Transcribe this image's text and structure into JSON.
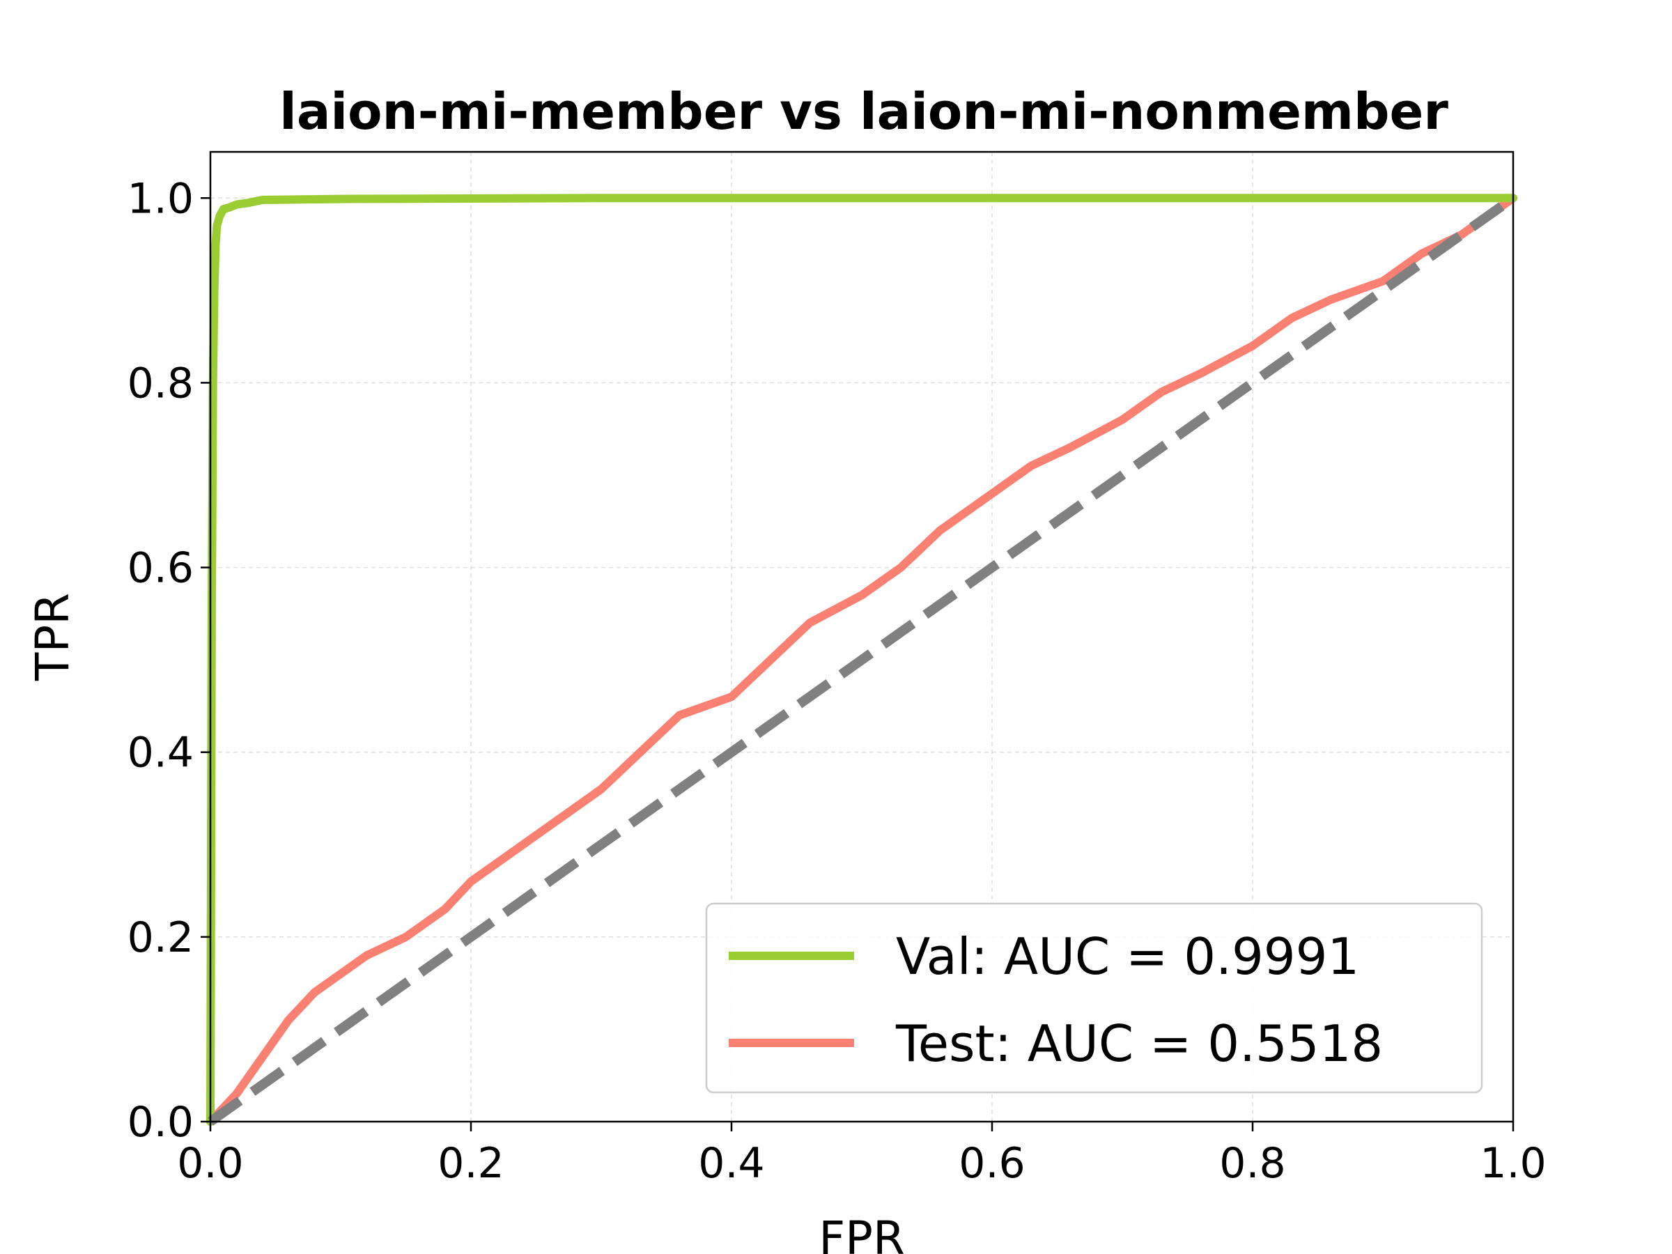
{
  "chart_data": {
    "type": "line",
    "title": "laion-mi-member vs laion-mi-nonmember",
    "xlabel": "FPR",
    "ylabel": "TPR",
    "xlim": [
      0.0,
      1.0
    ],
    "ylim": [
      0.0,
      1.05
    ],
    "xticks": [
      "0.0",
      "0.2",
      "0.4",
      "0.6",
      "0.8",
      "1.0"
    ],
    "yticks": [
      "0.0",
      "0.2",
      "0.4",
      "0.6",
      "0.8",
      "1.0"
    ],
    "grid": true,
    "legend_position": "lower-right",
    "series": [
      {
        "name": "Val: AUC = 0.9991",
        "color": "#9ACD32",
        "x": [
          0.0,
          0.001,
          0.002,
          0.003,
          0.004,
          0.005,
          0.007,
          0.01,
          0.015,
          0.02,
          0.03,
          0.04,
          0.1,
          0.3,
          0.6,
          1.0
        ],
        "y": [
          0.0,
          0.55,
          0.8,
          0.9,
          0.95,
          0.97,
          0.98,
          0.988,
          0.99,
          0.993,
          0.995,
          0.998,
          0.999,
          1.0,
          1.0,
          1.0
        ]
      },
      {
        "name": "Test: AUC = 0.5518",
        "color": "#FA8072",
        "x": [
          0.0,
          0.02,
          0.04,
          0.06,
          0.08,
          0.1,
          0.12,
          0.15,
          0.18,
          0.2,
          0.22,
          0.25,
          0.28,
          0.3,
          0.33,
          0.36,
          0.4,
          0.43,
          0.46,
          0.5,
          0.53,
          0.56,
          0.6,
          0.63,
          0.66,
          0.7,
          0.73,
          0.76,
          0.8,
          0.83,
          0.86,
          0.9,
          0.93,
          0.96,
          1.0
        ],
        "y": [
          0.0,
          0.03,
          0.07,
          0.11,
          0.14,
          0.16,
          0.18,
          0.2,
          0.23,
          0.26,
          0.28,
          0.31,
          0.34,
          0.36,
          0.4,
          0.44,
          0.46,
          0.5,
          0.54,
          0.57,
          0.6,
          0.64,
          0.68,
          0.71,
          0.73,
          0.76,
          0.79,
          0.81,
          0.84,
          0.87,
          0.89,
          0.91,
          0.94,
          0.96,
          1.0
        ]
      },
      {
        "name": "",
        "color": "#808080",
        "dashed": true,
        "x": [
          0.0,
          1.0
        ],
        "y": [
          0.0,
          1.0
        ]
      }
    ]
  }
}
